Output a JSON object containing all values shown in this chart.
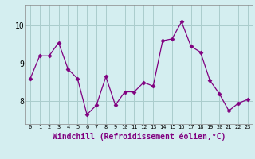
{
  "x": [
    0,
    1,
    2,
    3,
    4,
    5,
    6,
    7,
    8,
    9,
    10,
    11,
    12,
    13,
    14,
    15,
    16,
    17,
    18,
    19,
    20,
    21,
    22,
    23
  ],
  "y": [
    8.6,
    9.2,
    9.2,
    9.55,
    8.85,
    8.6,
    7.65,
    7.9,
    8.65,
    7.9,
    8.25,
    8.25,
    8.5,
    8.4,
    9.6,
    9.65,
    10.1,
    9.45,
    9.3,
    8.55,
    8.2,
    7.75,
    7.95,
    8.05
  ],
  "line_color": "#800080",
  "marker": "D",
  "marker_size": 2.5,
  "bg_color": "#d4eef0",
  "grid_color": "#aacccc",
  "xlabel": "Windchill (Refroidissement éolien,°C)",
  "xlabel_color": "#800080",
  "xtick_labels": [
    "0",
    "1",
    "2",
    "3",
    "4",
    "5",
    "6",
    "7",
    "8",
    "9",
    "10",
    "11",
    "12",
    "13",
    "14",
    "15",
    "16",
    "17",
    "18",
    "19",
    "20",
    "21",
    "22",
    "23"
  ],
  "ytick_labels": [
    "8",
    "9",
    "10"
  ],
  "yticks": [
    8,
    9,
    10
  ],
  "ylim": [
    7.4,
    10.55
  ],
  "xlim": [
    -0.5,
    23.5
  ]
}
